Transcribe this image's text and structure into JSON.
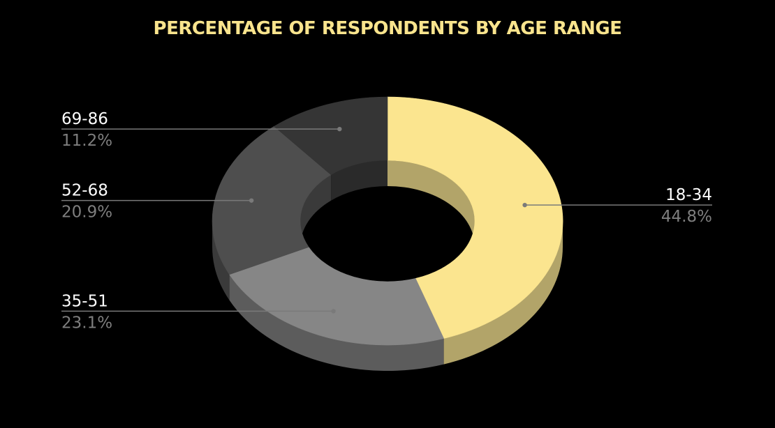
{
  "title": "PERCENTAGE OF RESPONDENTS BY AGE RANGE",
  "chart_data": {
    "type": "pie",
    "style": "3d-donut",
    "title": "PERCENTAGE OF RESPONDENTS BY AGE RANGE",
    "categories": [
      "18-34",
      "35-51",
      "52-68",
      "69-86"
    ],
    "values": [
      44.8,
      23.1,
      20.9,
      11.2
    ],
    "value_labels": [
      "44.8%",
      "23.1%",
      "20.9%",
      "11.2%"
    ],
    "colors": [
      "#fbe58f",
      "#868686",
      "#4e4e4e",
      "#353535"
    ],
    "side_colors": [
      "#b2a469",
      "#5c5c5c",
      "#3a3a3a",
      "#2a2a2a"
    ],
    "background": "#000000"
  }
}
